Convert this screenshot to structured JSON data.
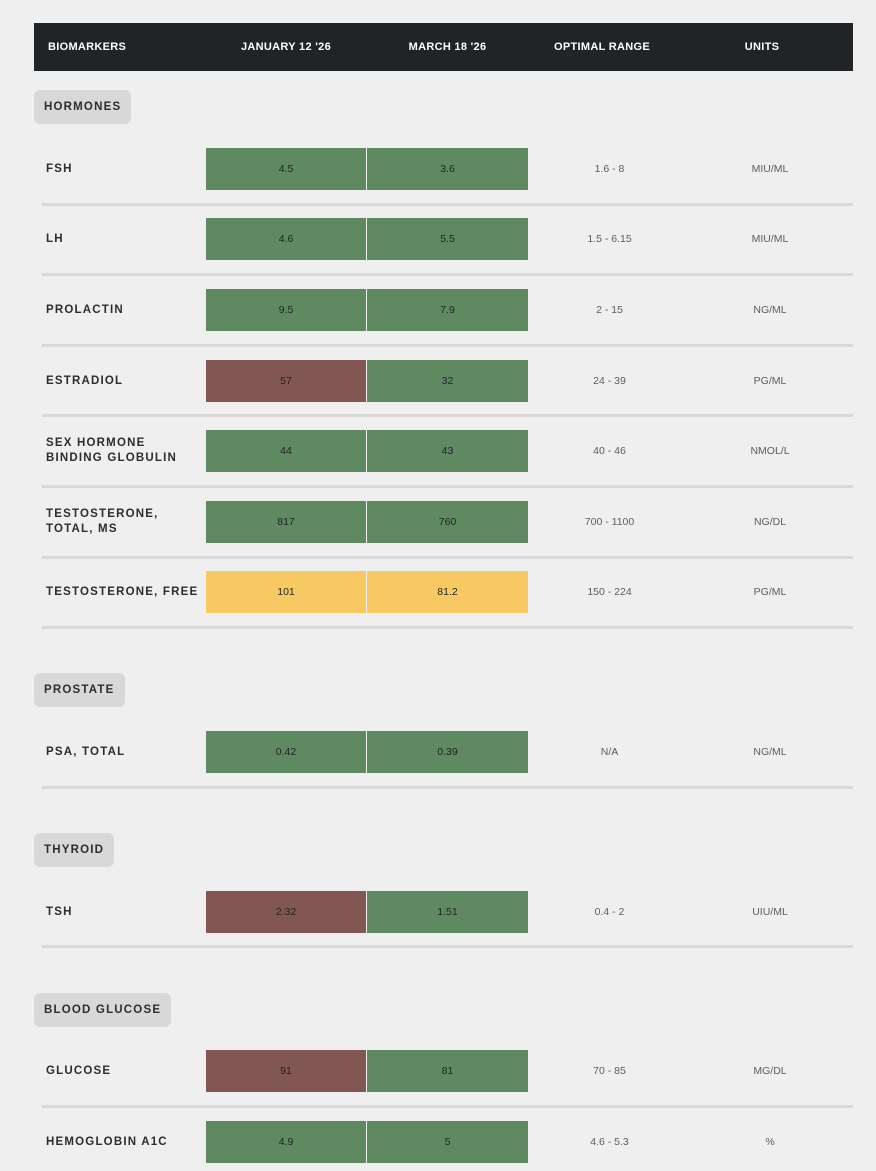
{
  "colors": {
    "optimal": "#5f8a61",
    "out_of_range": "#825753",
    "borderline": "#f7c963",
    "header_bg": "#212427"
  },
  "header": {
    "biomarkers": "BIOMARKERS",
    "date1": "JANUARY 12 '26",
    "date2": "MARCH 18 '26",
    "optimal_range": "OPTIMAL RANGE",
    "units": "UNITS"
  },
  "sections": [
    {
      "name": "HORMONES",
      "rows": [
        {
          "label": "FSH",
          "v1": "4.5",
          "v1_status": "green",
          "v2": "3.6",
          "v2_status": "green",
          "range": "1.6 - 8",
          "units": "MIU/ML"
        },
        {
          "label": "LH",
          "v1": "4.6",
          "v1_status": "green",
          "v2": "5.5",
          "v2_status": "green",
          "range": "1.5 - 6.15",
          "units": "MIU/ML"
        },
        {
          "label": "PROLACTIN",
          "v1": "9.5",
          "v1_status": "green",
          "v2": "7.9",
          "v2_status": "green",
          "range": "2 - 15",
          "units": "NG/ML"
        },
        {
          "label": "ESTRADIOL",
          "v1": "57",
          "v1_status": "red",
          "v2": "32",
          "v2_status": "green",
          "range": "24 - 39",
          "units": "PG/ML"
        },
        {
          "label": "SEX HORMONE\nBINDING GLOBULIN",
          "v1": "44",
          "v1_status": "green",
          "v2": "43",
          "v2_status": "green",
          "range": "40 - 46",
          "units": "NMOL/L"
        },
        {
          "label": "TESTOSTERONE,\nTOTAL, MS",
          "v1": "817",
          "v1_status": "green",
          "v2": "760",
          "v2_status": "green",
          "range": "700 - 1100",
          "units": "NG/DL"
        },
        {
          "label": "TESTOSTERONE, FREE",
          "v1": "101",
          "v1_status": "yellow",
          "v2": "81.2",
          "v2_status": "yellow",
          "range": "150 - 224",
          "units": "PG/ML"
        }
      ]
    },
    {
      "name": "PROSTATE",
      "rows": [
        {
          "label": "PSA, TOTAL",
          "v1": "0.42",
          "v1_status": "green",
          "v2": "0.39",
          "v2_status": "green",
          "range": "N/A",
          "units": "NG/ML"
        }
      ]
    },
    {
      "name": "THYROID",
      "rows": [
        {
          "label": "TSH",
          "v1": "2.32",
          "v1_status": "red",
          "v2": "1.51",
          "v2_status": "green",
          "range": "0.4 - 2",
          "units": "UIU/ML"
        }
      ]
    },
    {
      "name": "BLOOD GLUCOSE",
      "rows": [
        {
          "label": "GLUCOSE",
          "v1": "91",
          "v1_status": "red",
          "v2": "81",
          "v2_status": "green",
          "range": "70 - 85",
          "units": "MG/DL"
        },
        {
          "label": "HEMOGLOBIN A1C",
          "v1": "4.9",
          "v1_status": "green",
          "v2": "5",
          "v2_status": "green",
          "range": "4.6 - 5.3",
          "units": "%"
        }
      ]
    }
  ]
}
